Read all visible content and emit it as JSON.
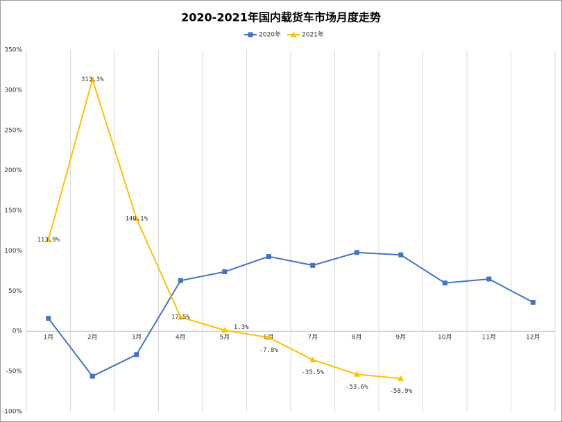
{
  "chart_data": {
    "type": "line",
    "title": "2020-2021年国内载货车市场月度走势",
    "categories": [
      "1月",
      "2月",
      "3月",
      "4月",
      "5月",
      "6月",
      "7月",
      "8月",
      "9月",
      "10月",
      "11月",
      "12月"
    ],
    "series": [
      {
        "name": "2020年",
        "color": "#4472c4",
        "marker": "square",
        "values": [
          16,
          -56,
          -29,
          63,
          74,
          93,
          82,
          98,
          95,
          60,
          65,
          36
        ]
      },
      {
        "name": "2021年",
        "color": "#ffc000",
        "marker": "triangle",
        "values": [
          113.9,
          313.3,
          140.1,
          17.5,
          1.3,
          -7.8,
          -35.5,
          -53.6,
          -58.9,
          null,
          null,
          null
        ],
        "value_labels": [
          "113.9%",
          "313.3%",
          "140.1%",
          "17.5%",
          "1.3%",
          "-7.8%",
          "-35.5%",
          "-53.6%",
          "-58.9%",
          null,
          null,
          null
        ]
      }
    ],
    "ylim": [
      -100,
      350
    ],
    "yticks": [
      {
        "value": -100,
        "label": "-100%"
      },
      {
        "value": -50,
        "label": "-50%"
      },
      {
        "value": 0,
        "label": "0%"
      },
      {
        "value": 50,
        "label": "50%"
      },
      {
        "value": 100,
        "label": "100%"
      },
      {
        "value": 150,
        "label": "150%"
      },
      {
        "value": 200,
        "label": "200%"
      },
      {
        "value": 250,
        "label": "250%"
      },
      {
        "value": 300,
        "label": "300%"
      },
      {
        "value": 350,
        "label": "350%"
      }
    ],
    "legend": "top",
    "value_label_color": "#ff0000"
  }
}
